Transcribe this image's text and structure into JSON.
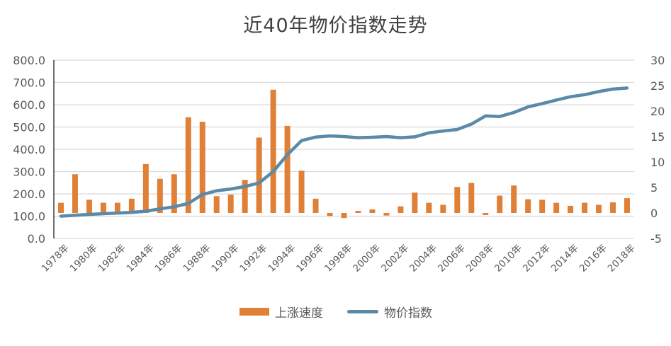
{
  "chart_data": {
    "type": "bar+line",
    "title": "近40年物价指数走势",
    "xlabel": "",
    "ylabel_left": "",
    "ylabel_right": "",
    "x": [
      1978,
      1979,
      1980,
      1981,
      1982,
      1983,
      1984,
      1985,
      1986,
      1987,
      1988,
      1989,
      1990,
      1991,
      1992,
      1993,
      1994,
      1995,
      1996,
      1997,
      1998,
      1999,
      2000,
      2001,
      2002,
      2003,
      2004,
      2005,
      2006,
      2007,
      2008,
      2009,
      2010,
      2011,
      2012,
      2013,
      2014,
      2015,
      2016,
      2017,
      2018
    ],
    "x_tick_labels": [
      "1978年",
      "1980年",
      "1982年",
      "1984年",
      "1986年",
      "1988年",
      "1990年",
      "1992年",
      "1994年",
      "1996年",
      "1998年",
      "2000年",
      "2002年",
      "2004年",
      "2006年",
      "2008年",
      "2010年",
      "2012年",
      "2014年",
      "2016年",
      "2018年"
    ],
    "left_axis": {
      "ticks": [
        "0.0",
        "100.0",
        "200.0",
        "300.0",
        "400.0",
        "500.0",
        "600.0",
        "700.0",
        "800.0"
      ],
      "ylim": [
        0,
        800
      ]
    },
    "right_axis": {
      "ticks": [
        "-5",
        "0",
        "5",
        "10",
        "15",
        "20",
        "25",
        "30"
      ],
      "ylim": [
        -5,
        30
      ]
    },
    "grid": true,
    "legend_position": "bottom",
    "series": [
      {
        "name": "上涨速度",
        "type": "bar",
        "axis": "right",
        "color": "#E07F36",
        "values": [
          2.0,
          7.6,
          2.6,
          2.0,
          2.0,
          2.8,
          9.6,
          6.7,
          7.6,
          18.8,
          17.9,
          3.3,
          3.6,
          6.5,
          14.8,
          24.2,
          17.1,
          8.3,
          2.8,
          -0.6,
          -1.0,
          0.4,
          0.7,
          -0.5,
          1.3,
          4.0,
          2.0,
          1.6,
          5.1,
          5.9,
          -0.4,
          3.4,
          5.4,
          2.7,
          2.6,
          2.0,
          1.4,
          2.0,
          1.6,
          2.1,
          2.9
        ]
      },
      {
        "name": "物价指数",
        "type": "line",
        "axis": "left",
        "color": "#5B89A8",
        "values": [
          100,
          104,
          108,
          111,
          114,
          117,
          122,
          133,
          142,
          157,
          197,
          214,
          222,
          233,
          249,
          300,
          376,
          439,
          455,
          460,
          457,
          452,
          454,
          457,
          452,
          456,
          474,
          482,
          489,
          513,
          550,
          547,
          565,
          590,
          605,
          621,
          636,
          645,
          659,
          670,
          675
        ]
      }
    ]
  },
  "legend": {
    "bar_label": "上涨速度",
    "line_label": "物价指数"
  }
}
